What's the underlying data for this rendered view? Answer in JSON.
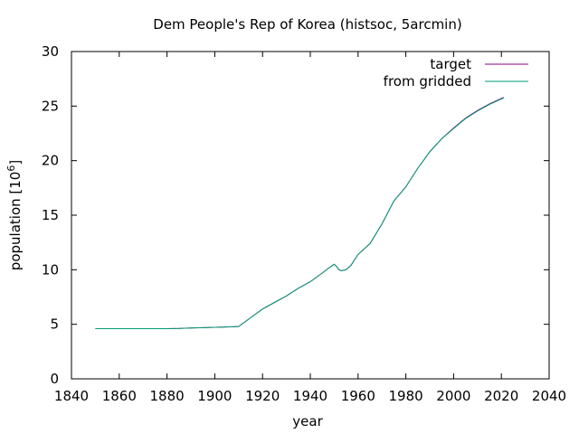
{
  "chart_data": {
    "type": "line",
    "title": "Dem People's Rep of Korea (histsoc, 5arcmin)",
    "xlabel": "year",
    "ylabel_main": "population [10",
    "ylabel_sup": "6",
    "ylabel_close": "]",
    "xlim": [
      1840,
      2040
    ],
    "ylim": [
      0,
      30
    ],
    "xticks": [
      1840,
      1860,
      1880,
      1900,
      1920,
      1940,
      1960,
      1980,
      2000,
      2020,
      2040
    ],
    "yticks": [
      0,
      5,
      10,
      15,
      20,
      25,
      30
    ],
    "grid": false,
    "legend_position": "top-right",
    "series": [
      {
        "name": "target",
        "color": "#8b008b",
        "x": [
          1850,
          1860,
          1870,
          1880,
          1885,
          1890,
          1900,
          1905,
          1910,
          1915,
          1920,
          1925,
          1930,
          1935,
          1940,
          1945,
          1948,
          1950,
          1951,
          1952,
          1953,
          1955,
          1957,
          1960,
          1963,
          1965,
          1970,
          1975,
          1980,
          1985,
          1990,
          1995,
          2000,
          2005,
          2010,
          2015,
          2021
        ],
        "y": [
          4.6,
          4.6,
          4.6,
          4.6,
          4.62,
          4.66,
          4.72,
          4.76,
          4.8,
          5.6,
          6.4,
          7.0,
          7.6,
          8.3,
          8.9,
          9.7,
          10.2,
          10.5,
          10.3,
          10.0,
          9.9,
          10.0,
          10.4,
          11.4,
          12.0,
          12.4,
          14.2,
          16.3,
          17.6,
          19.3,
          20.8,
          22.0,
          23.0,
          23.9,
          24.6,
          25.2,
          25.8
        ]
      },
      {
        "name": "from gridded",
        "color": "#009e73",
        "x": [
          1850,
          1860,
          1870,
          1880,
          1885,
          1890,
          1900,
          1905,
          1910,
          1915,
          1920,
          1925,
          1930,
          1935,
          1940,
          1945,
          1948,
          1950,
          1951,
          1952,
          1953,
          1955,
          1957,
          1960,
          1963,
          1965,
          1970,
          1975,
          1980,
          1985,
          1990,
          1995,
          2000,
          2005,
          2010,
          2015,
          2021
        ],
        "y": [
          4.6,
          4.6,
          4.6,
          4.6,
          4.62,
          4.66,
          4.72,
          4.76,
          4.8,
          5.6,
          6.4,
          7.0,
          7.6,
          8.3,
          8.9,
          9.7,
          10.2,
          10.5,
          10.3,
          10.0,
          9.9,
          10.0,
          10.4,
          11.4,
          12.0,
          12.4,
          14.2,
          16.3,
          17.6,
          19.3,
          20.8,
          22.0,
          22.95,
          23.85,
          24.55,
          25.15,
          25.75
        ]
      }
    ]
  }
}
